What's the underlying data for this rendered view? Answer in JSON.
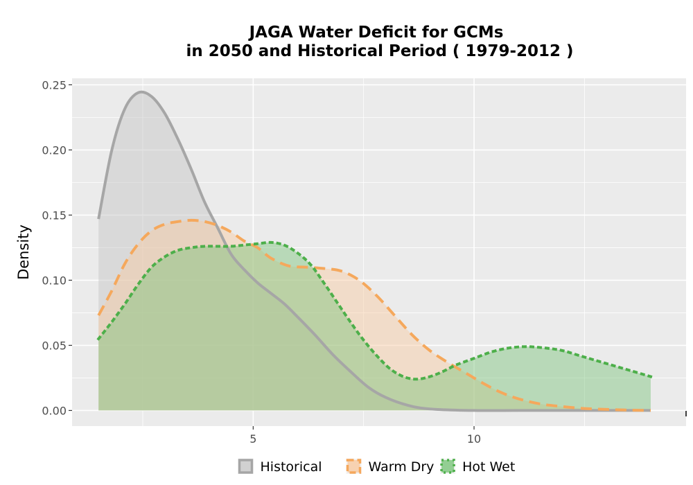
{
  "chart_data": {
    "type": "area",
    "title_line1": "JAGA  Water Deficit for GCMs",
    "title_line2": "in 2050 and Historical Period ( 1979-2012 )",
    "xlabel": "",
    "ylabel": "Density",
    "xlim": [
      0.9,
      14.8
    ],
    "ylim": [
      -0.012,
      0.255
    ],
    "x_ticks": [
      {
        "value": 5,
        "label": "5"
      },
      {
        "value": 10,
        "label": "10"
      }
    ],
    "y_ticks": [
      {
        "value": 0.0,
        "label": "0.00"
      },
      {
        "value": 0.05,
        "label": "0.05"
      },
      {
        "value": 0.1,
        "label": "0.10"
      },
      {
        "value": 0.15,
        "label": "0.15"
      },
      {
        "value": 0.2,
        "label": "0.20"
      },
      {
        "value": 0.25,
        "label": "0.25"
      }
    ],
    "grid": true,
    "legend_position": "bottom",
    "series": [
      {
        "name": "Historical",
        "color": "#a6a6a6",
        "fill": "#c8c8c8",
        "fill_opacity": 0.5,
        "dash": "solid",
        "points": [
          [
            1.5,
            0.147
          ],
          [
            1.8,
            0.2
          ],
          [
            2.1,
            0.232
          ],
          [
            2.4,
            0.244
          ],
          [
            2.7,
            0.241
          ],
          [
            3.0,
            0.228
          ],
          [
            3.3,
            0.208
          ],
          [
            3.6,
            0.185
          ],
          [
            3.9,
            0.16
          ],
          [
            4.2,
            0.14
          ],
          [
            4.5,
            0.12
          ],
          [
            4.8,
            0.108
          ],
          [
            5.1,
            0.098
          ],
          [
            5.4,
            0.09
          ],
          [
            5.7,
            0.082
          ],
          [
            6.0,
            0.072
          ],
          [
            6.4,
            0.058
          ],
          [
            6.8,
            0.043
          ],
          [
            7.2,
            0.03
          ],
          [
            7.6,
            0.018
          ],
          [
            8.0,
            0.01
          ],
          [
            8.5,
            0.004
          ],
          [
            9.0,
            0.0012
          ],
          [
            10.0,
            0.0
          ],
          [
            11.0,
            0.0
          ],
          [
            12.0,
            0.0
          ],
          [
            13.0,
            0.0
          ],
          [
            14.0,
            0.0
          ]
        ]
      },
      {
        "name": "Warm Dry",
        "color": "#f5a85c",
        "fill": "#f8c9a0",
        "fill_opacity": 0.45,
        "dash": "dashed",
        "points": [
          [
            1.5,
            0.073
          ],
          [
            1.8,
            0.092
          ],
          [
            2.1,
            0.113
          ],
          [
            2.4,
            0.128
          ],
          [
            2.7,
            0.138
          ],
          [
            3.0,
            0.143
          ],
          [
            3.3,
            0.145
          ],
          [
            3.6,
            0.146
          ],
          [
            3.9,
            0.145
          ],
          [
            4.2,
            0.142
          ],
          [
            4.5,
            0.137
          ],
          [
            4.8,
            0.13
          ],
          [
            5.1,
            0.125
          ],
          [
            5.4,
            0.117
          ],
          [
            5.8,
            0.111
          ],
          [
            6.2,
            0.11
          ],
          [
            6.6,
            0.109
          ],
          [
            7.0,
            0.107
          ],
          [
            7.4,
            0.1
          ],
          [
            7.8,
            0.088
          ],
          [
            8.2,
            0.073
          ],
          [
            8.6,
            0.058
          ],
          [
            9.0,
            0.046
          ],
          [
            9.4,
            0.037
          ],
          [
            9.8,
            0.029
          ],
          [
            10.2,
            0.021
          ],
          [
            10.6,
            0.014
          ],
          [
            11.0,
            0.009
          ],
          [
            11.5,
            0.005
          ],
          [
            12.0,
            0.003
          ],
          [
            12.5,
            0.0015
          ],
          [
            13.0,
            0.0008
          ],
          [
            13.5,
            0.0003
          ],
          [
            14.0,
            0.0
          ]
        ]
      },
      {
        "name": "Hot Wet",
        "color": "#4daf4a",
        "fill": "#7ac47a",
        "fill_opacity": 0.45,
        "dash": "dotted",
        "points": [
          [
            1.5,
            0.055
          ],
          [
            1.8,
            0.068
          ],
          [
            2.1,
            0.082
          ],
          [
            2.4,
            0.097
          ],
          [
            2.7,
            0.11
          ],
          [
            3.0,
            0.118
          ],
          [
            3.3,
            0.123
          ],
          [
            3.6,
            0.125
          ],
          [
            3.9,
            0.126
          ],
          [
            4.2,
            0.126
          ],
          [
            4.5,
            0.126
          ],
          [
            4.8,
            0.127
          ],
          [
            5.1,
            0.128
          ],
          [
            5.4,
            0.129
          ],
          [
            5.7,
            0.127
          ],
          [
            6.0,
            0.121
          ],
          [
            6.3,
            0.112
          ],
          [
            6.6,
            0.098
          ],
          [
            6.9,
            0.083
          ],
          [
            7.2,
            0.068
          ],
          [
            7.5,
            0.054
          ],
          [
            7.8,
            0.042
          ],
          [
            8.1,
            0.032
          ],
          [
            8.4,
            0.026
          ],
          [
            8.7,
            0.024
          ],
          [
            9.0,
            0.026
          ],
          [
            9.3,
            0.03
          ],
          [
            9.6,
            0.035
          ],
          [
            10.0,
            0.04
          ],
          [
            10.4,
            0.045
          ],
          [
            10.8,
            0.048
          ],
          [
            11.2,
            0.049
          ],
          [
            11.6,
            0.048
          ],
          [
            12.0,
            0.046
          ],
          [
            12.4,
            0.042
          ],
          [
            12.8,
            0.038
          ],
          [
            13.2,
            0.034
          ],
          [
            13.6,
            0.03
          ],
          [
            14.0,
            0.026
          ]
        ]
      }
    ]
  }
}
